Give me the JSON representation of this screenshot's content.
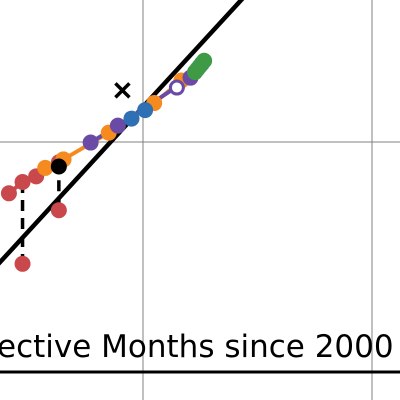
{
  "chart_data": {
    "type": "scatter",
    "xlabel": "ective Months since 2000",
    "grid": true,
    "colors": {
      "line": "#000000",
      "grid": "#808080",
      "red": "#c9484b",
      "orange": "#f58a1f",
      "purple": "#6a4aa5",
      "blue": "#2f6fb3",
      "green": "#3f9a46"
    },
    "series": [
      {
        "color": "red",
        "line": true,
        "points": [
          [
            -0.2,
            5.7
          ],
          [
            0.1,
            5.78
          ],
          [
            0.4,
            5.82
          ],
          [
            0.9,
            5.92
          ],
          [
            1.0,
            5.94
          ]
        ]
      },
      {
        "color": "orange",
        "line": true,
        "points": [
          [
            0.6,
            5.88
          ],
          [
            1.0,
            5.94
          ],
          [
            2.0,
            6.13
          ],
          [
            3.0,
            6.34
          ],
          [
            3.6,
            6.5
          ]
        ]
      },
      {
        "color": "purple",
        "line": true,
        "points": [
          [
            1.6,
            6.06
          ],
          [
            2.2,
            6.18
          ],
          [
            3.8,
            6.52
          ]
        ]
      },
      {
        "color": "blue",
        "line": false,
        "points": [
          [
            2.5,
            6.23
          ],
          [
            2.8,
            6.29
          ],
          [
            4.05,
            6.62
          ]
        ]
      },
      {
        "color": "green",
        "line": false,
        "points": [
          [
            3.9,
            6.56
          ],
          [
            3.95,
            6.58
          ],
          [
            4.0,
            6.6
          ],
          [
            4.1,
            6.64
          ]
        ]
      },
      {
        "color": "black",
        "line": false,
        "points": [
          [
            0.9,
            5.89
          ]
        ]
      }
    ],
    "fit_line": [
      [
        -1.0,
        5.0
      ],
      [
        7.0,
        7.8
      ]
    ],
    "vertical_links": [
      [
        0.1,
        5.78,
        5.2
      ],
      [
        0.9,
        5.92,
        5.58
      ]
    ],
    "down_points": [
      [
        0.1,
        5.2
      ],
      [
        0.9,
        5.58
      ]
    ],
    "open_points": [
      [
        3.5,
        6.45
      ]
    ],
    "cross_points": [
      [
        2.3,
        6.43
      ]
    ]
  }
}
